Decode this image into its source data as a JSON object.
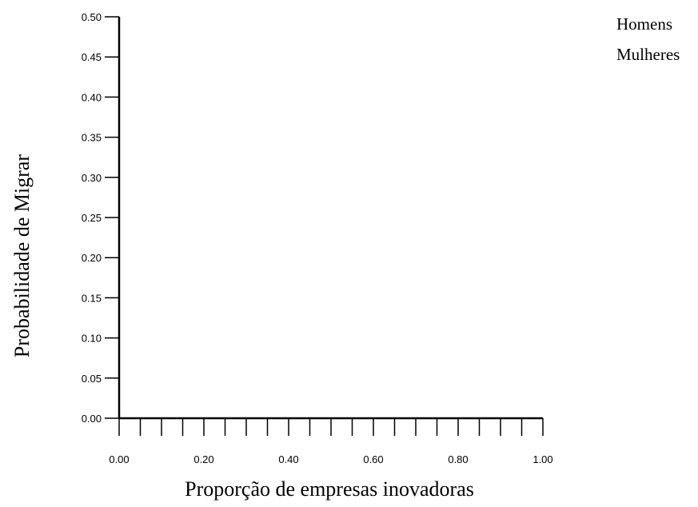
{
  "chart_data": {
    "type": "line",
    "title": "",
    "xlabel": "Proporção de empresas inovadoras",
    "ylabel": "Probabilidade de Migrar",
    "xlim": [
      0,
      1
    ],
    "ylim": [
      0,
      0.5
    ],
    "x_ticks": [
      "0.00",
      "0.20",
      "0.40",
      "0.60",
      "0.80",
      "1.00"
    ],
    "y_ticks": [
      "0.00",
      "0.05",
      "0.10",
      "0.15",
      "0.20",
      "0.25",
      "0.30",
      "0.35",
      "0.40",
      "0.45",
      "0.50"
    ],
    "x_minor_step": 0.05,
    "grid": false,
    "legend_position": "top-right",
    "legend": [
      "Homens",
      "Mulheres"
    ],
    "series": [
      {
        "name": "Homens",
        "x": [],
        "y": []
      },
      {
        "name": "Mulheres",
        "x": [],
        "y": []
      }
    ]
  },
  "colors": {
    "axis": "#000000",
    "text": "#000000",
    "background": "#ffffff"
  }
}
